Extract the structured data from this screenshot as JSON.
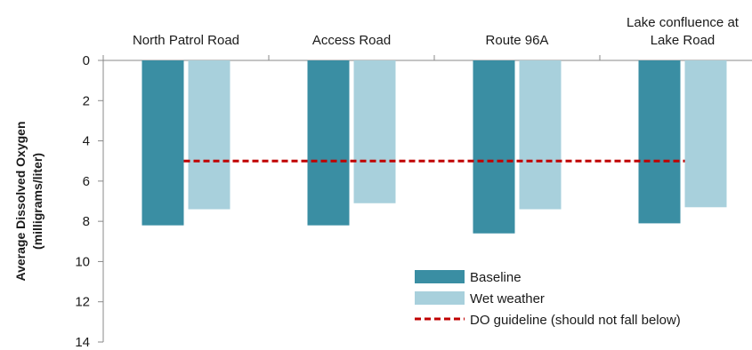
{
  "chart_data": {
    "type": "bar",
    "categories": [
      [
        "North Patrol Road"
      ],
      [
        "Access Road"
      ],
      [
        "Route 96A"
      ],
      [
        "Lake confluence at",
        "Lake Road"
      ]
    ],
    "series": [
      {
        "name": "Baseline",
        "values": [
          8.2,
          8.2,
          8.6,
          8.1
        ],
        "color": "#3a8ea3"
      },
      {
        "name": "Wet weather",
        "values": [
          7.4,
          7.1,
          7.4,
          7.3
        ],
        "color": "#a8d0dc"
      }
    ],
    "guideline": {
      "name": "DO guideline (should not fall below)",
      "value": 5,
      "color": "#c00000"
    },
    "ylabel": [
      "Average Dissolved Oxygen",
      "(milligrams/liter)"
    ],
    "ylim": [
      0,
      14
    ],
    "y_ticks": [
      0,
      2,
      4,
      6,
      8,
      10,
      12,
      14
    ],
    "y_axis_inverted": true,
    "x_axis_position": "top",
    "legend_position": "bottom-right",
    "grid": false
  }
}
